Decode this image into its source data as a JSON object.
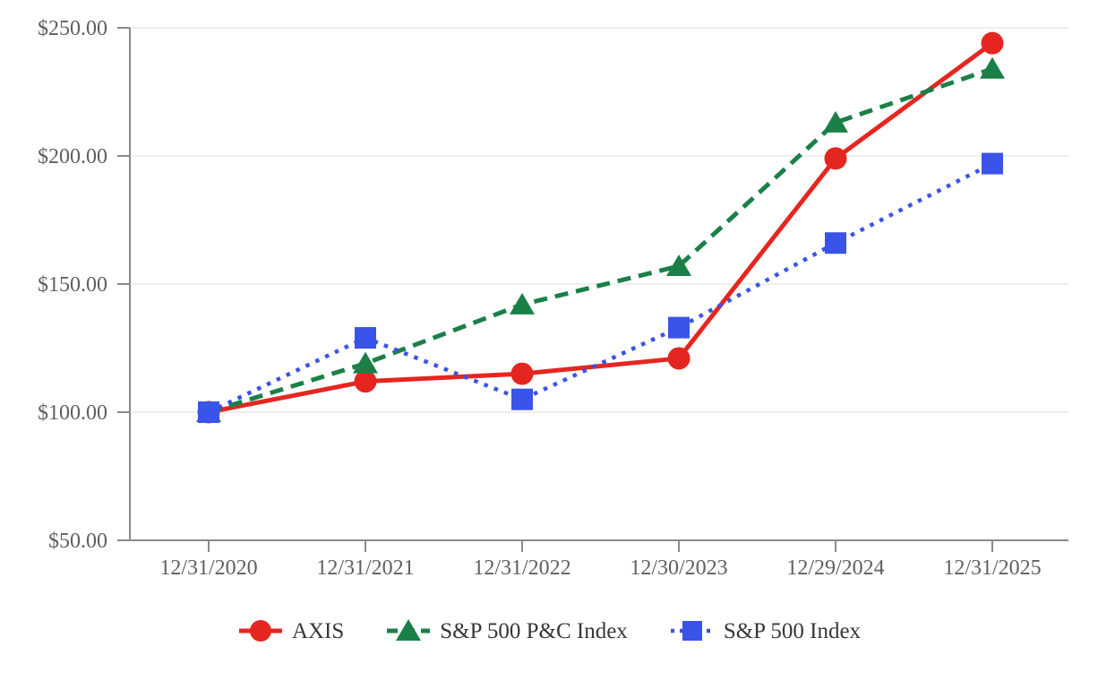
{
  "chart_data": {
    "type": "line",
    "title": "",
    "categories": [
      "12/31/2020",
      "12/31/2021",
      "12/31/2022",
      "12/30/2023",
      "12/29/2024",
      "12/31/2025"
    ],
    "series": [
      {
        "name": "AXIS",
        "color": "#e52620",
        "marker": "circle",
        "line_style": "solid",
        "values": [
          100,
          112,
          115,
          121,
          199,
          244
        ]
      },
      {
        "name": "S&P 500 P&C Index",
        "color": "#1a8048",
        "marker": "triangle",
        "line_style": "dashed",
        "values": [
          100,
          119,
          142,
          157,
          213,
          234
        ]
      },
      {
        "name": "S&P 500 Index",
        "color": "#3a53e8",
        "marker": "square",
        "line_style": "dotted",
        "values": [
          100,
          129,
          105,
          133,
          166,
          197
        ]
      }
    ],
    "y_axis": {
      "tick_labels": [
        "$50.00",
        "$100.00",
        "$150.00",
        "$200.00",
        "$250.00"
      ],
      "tick_values": [
        50,
        100,
        150,
        200,
        250
      ],
      "min": 50,
      "max": 250
    },
    "grid": true,
    "legend_position": "bottom"
  },
  "styles": {
    "grid_color": "#e9e9e9",
    "axis_color": "#8a8a8a",
    "label_color": "#5f5f5f",
    "legend_text_color": "#373737",
    "background": "#ffffff"
  }
}
